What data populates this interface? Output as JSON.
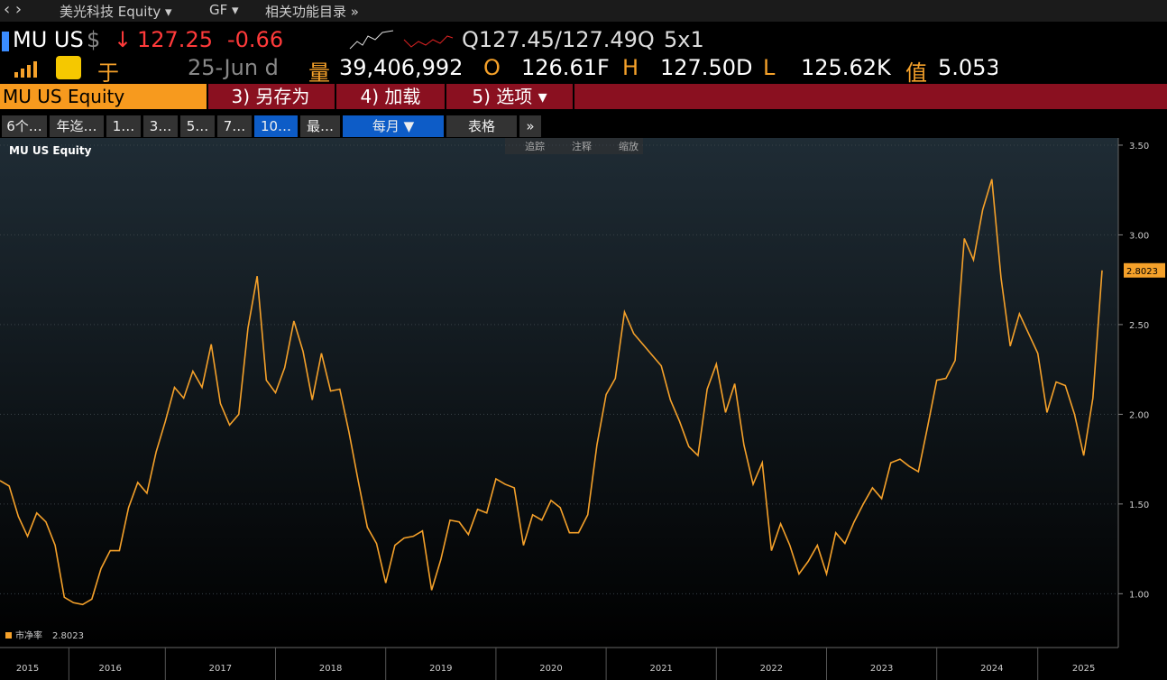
{
  "nav": {
    "security": "美光科技 Equity",
    "source": "GF",
    "related": "相关功能目录"
  },
  "quote": {
    "ticker": "MU US",
    "currency": "$",
    "arrow": "↓",
    "price": "127.25",
    "change": "-0.66",
    "bidask": "Q127.45/127.49Q",
    "size": "5x1",
    "at": "于",
    "date": "25-Jun d",
    "vol_label": "量",
    "volume": "39,406,992",
    "open_label": "O",
    "open": "126.61F",
    "high_label": "H",
    "high": "127.50D",
    "low_label": "L",
    "low": "125.62K",
    "val_label": "值",
    "val": "5.053"
  },
  "menu": {
    "security": "MU US Equity",
    "items": [
      "3) 另存为",
      "4) 加载",
      "5) 选项 ▾"
    ]
  },
  "tabs": [
    "6个…",
    "年迄…",
    "1…",
    "3…",
    "5…",
    "7…",
    "10…",
    "最…",
    "每月 ▼",
    "表格",
    "»"
  ],
  "tools": [
    "追踪",
    "注释",
    "缩放"
  ],
  "chart_data": {
    "type": "line",
    "title": "MU US Equity",
    "categories": [
      null,
      null,
      null,
      "2015",
      null,
      null,
      null,
      null,
      null,
      null,
      null,
      null,
      "2016",
      null,
      null,
      null,
      null,
      null,
      null,
      null,
      null,
      null,
      null,
      null,
      "2017",
      null,
      null,
      null,
      null,
      null,
      null,
      null,
      null,
      null,
      null,
      null,
      "2018",
      null,
      null,
      null,
      null,
      null,
      null,
      null,
      null,
      null,
      null,
      null,
      "2019",
      null,
      null,
      null,
      null,
      null,
      null,
      null,
      null,
      null,
      null,
      null,
      "2020",
      null,
      null,
      null,
      null,
      null,
      null,
      null,
      null,
      null,
      null,
      null,
      "2021",
      null,
      null,
      null,
      null,
      null,
      null,
      null,
      null,
      null,
      null,
      null,
      "2022",
      null,
      null,
      null,
      null,
      null,
      null,
      null,
      null,
      null,
      null,
      null,
      "2023",
      null,
      null,
      null,
      null,
      null,
      null,
      null,
      null,
      null,
      null,
      null,
      "2024",
      null,
      null,
      null,
      null,
      null,
      null,
      null,
      null,
      null,
      "2025",
      null,
      null
    ],
    "series": [
      {
        "name": "市净率",
        "color": "#f5a12a",
        "axis": "y2",
        "values": [
          1.63,
          1.6,
          1.43,
          1.32,
          1.45,
          1.4,
          1.27,
          0.98,
          0.95,
          0.94,
          0.97,
          1.14,
          1.24,
          1.24,
          1.48,
          1.62,
          1.56,
          1.79,
          1.96,
          2.15,
          2.09,
          2.24,
          2.15,
          2.39,
          2.06,
          1.94,
          2.0,
          2.48,
          2.77,
          2.19,
          2.12,
          2.26,
          2.52,
          2.35,
          2.08,
          2.34,
          2.13,
          2.14,
          1.9,
          1.63,
          1.37,
          1.28,
          1.06,
          1.27,
          1.31,
          1.32,
          1.35,
          1.02,
          1.19,
          1.41,
          1.4,
          1.33,
          1.47,
          1.45,
          1.64,
          1.61,
          1.59,
          1.27,
          1.44,
          1.41,
          1.52,
          1.48,
          1.34,
          1.34,
          1.44,
          1.83,
          2.11,
          2.2,
          2.57,
          2.45,
          2.39,
          2.33,
          2.27,
          2.08,
          1.96,
          1.82,
          1.77,
          2.14,
          2.28,
          2.01,
          2.17,
          1.83,
          1.61,
          1.73,
          1.24,
          1.39,
          1.27,
          1.11,
          1.18,
          1.27,
          1.11,
          1.34,
          1.28,
          1.4,
          1.5,
          1.59,
          1.53,
          1.73,
          1.75,
          1.71,
          1.68,
          1.93,
          2.19,
          2.2,
          2.3,
          2.98,
          2.86,
          3.14,
          3.31,
          2.76,
          2.38,
          2.56,
          2.45,
          2.34,
          2.01,
          2.18,
          2.16,
          2.0,
          1.77,
          2.09,
          2.8023
        ]
      }
    ],
    "y2lim": [
      0.7,
      3.54
    ],
    "y2ticks": [
      {
        "value": 1,
        "label": "1.00"
      },
      {
        "value": 1.5,
        "label": "1.50"
      },
      {
        "value": 2,
        "label": "2.00"
      },
      {
        "value": 2.5,
        "label": "2.50"
      },
      {
        "value": 3,
        "label": "3.00"
      },
      {
        "value": 3.5,
        "label": "3.50"
      }
    ],
    "grid": true,
    "legend": "bottom-left"
  }
}
